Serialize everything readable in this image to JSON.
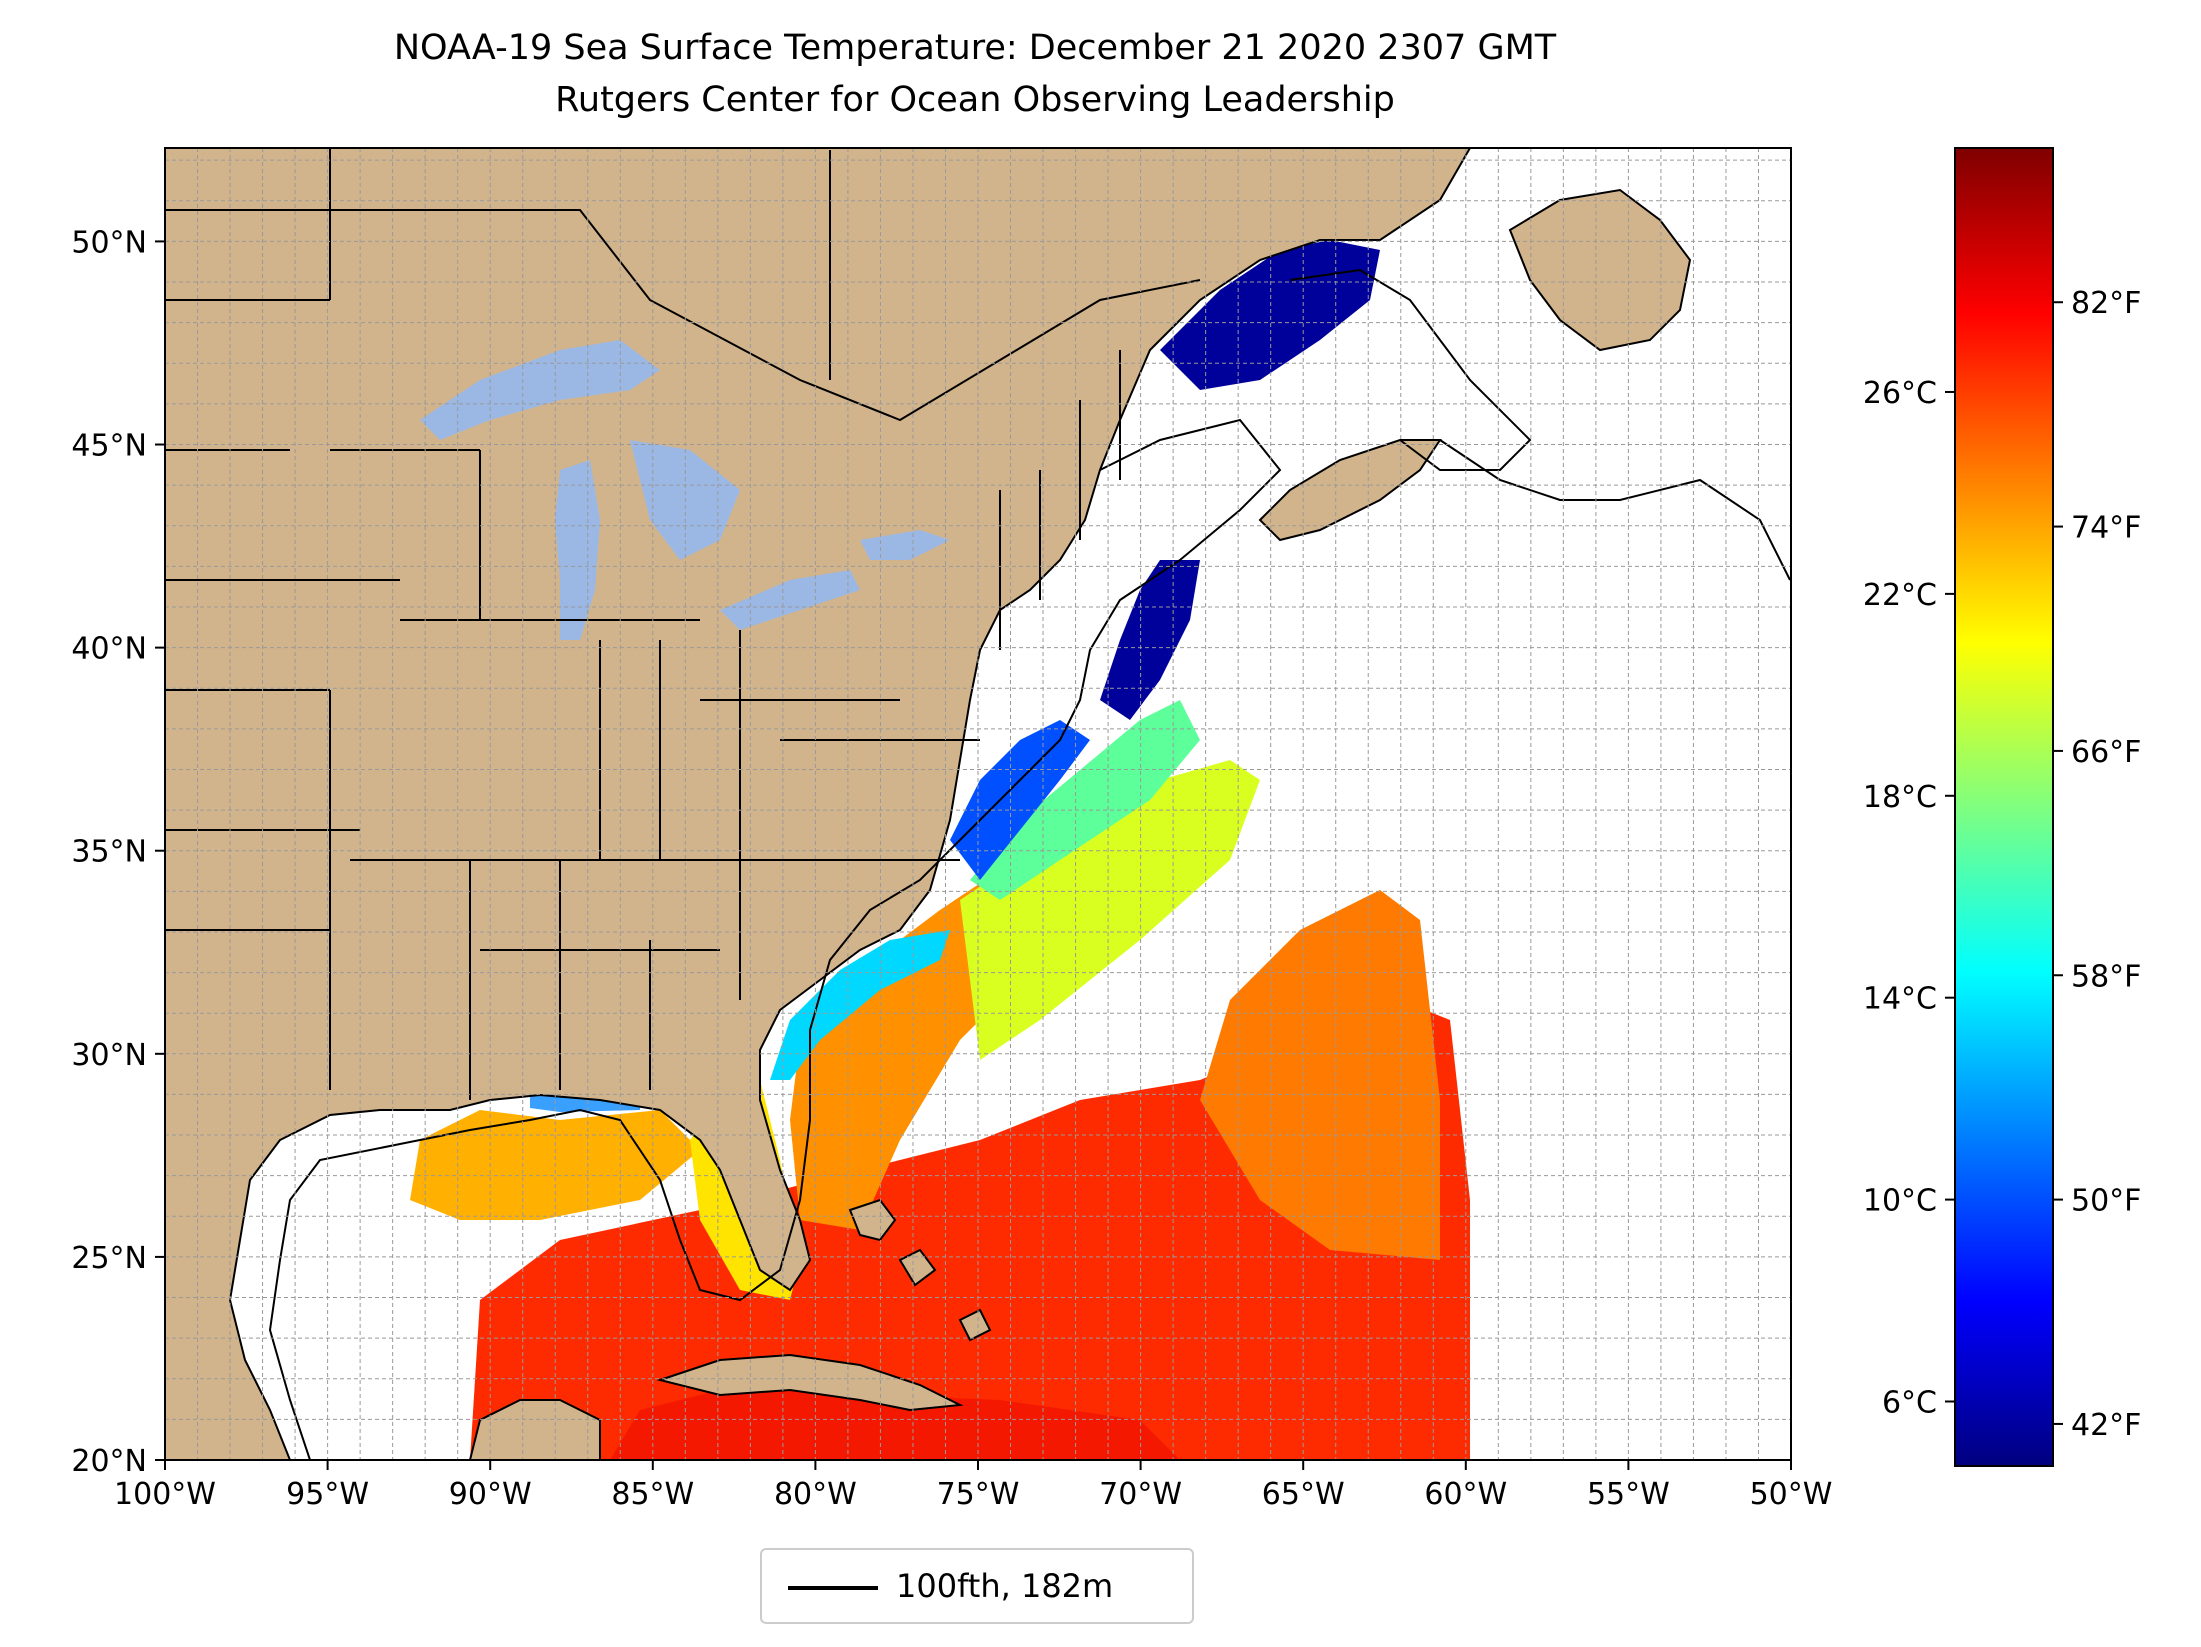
{
  "header": {
    "title": "NOAA-19 Sea Surface Temperature: December 21 2020 2307 GMT",
    "subtitle": "Rutgers Center for Ocean Observing Leadership"
  },
  "map": {
    "lon_range": [
      -100,
      -50
    ],
    "lat_range": [
      20,
      52.3
    ],
    "x_ticks": [
      "100°W",
      "95°W",
      "90°W",
      "85°W",
      "80°W",
      "75°W",
      "70°W",
      "65°W",
      "60°W",
      "55°W",
      "50°W"
    ],
    "y_ticks": [
      "20°N",
      "25°N",
      "30°N",
      "35°N",
      "40°N",
      "45°N",
      "50°N"
    ],
    "gridlines": "dashed, 1 degree",
    "land_color": "#d2b48c",
    "lake_color": "#9bb8e5",
    "legend": {
      "label": "100fth, 182m",
      "line_color": "#000000",
      "position": "below map, center"
    }
  },
  "colorbar": {
    "colormap": "jet",
    "celsius_ticks": [
      "6°C",
      "10°C",
      "14°C",
      "18°C",
      "22°C",
      "26°C"
    ],
    "fahrenheit_ticks": [
      "42°F",
      "50°F",
      "58°F",
      "66°F",
      "74°F",
      "82°F"
    ],
    "range_f": [
      40.5,
      87.5
    ],
    "colors": [
      "#00007f",
      "#0000ff",
      "#007fff",
      "#00ffff",
      "#7fff7f",
      "#ffff00",
      "#ff7f00",
      "#ff0000",
      "#7f0000"
    ]
  }
}
